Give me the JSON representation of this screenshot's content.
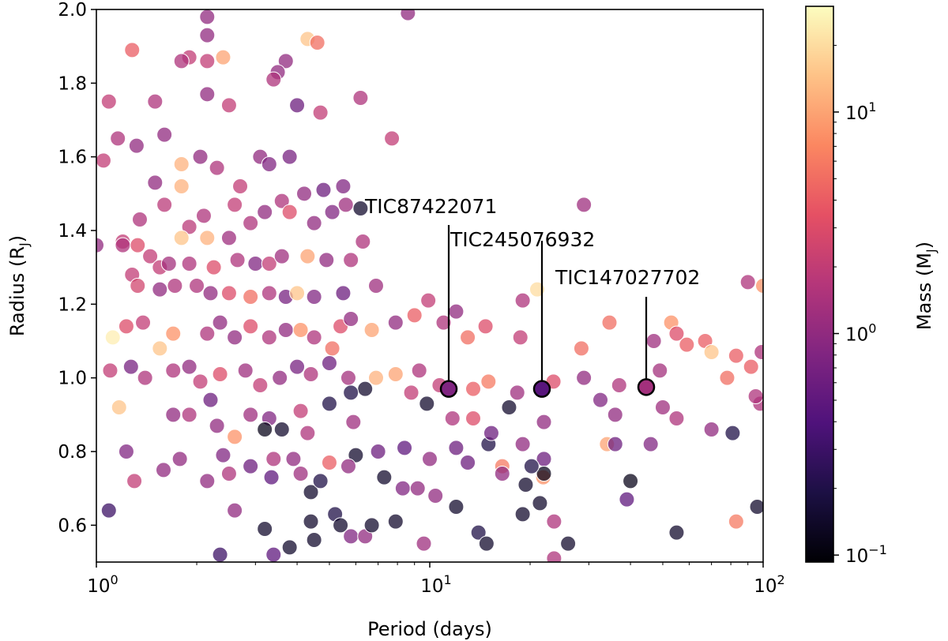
{
  "chart_data": {
    "type": "scatter",
    "xlabel": "Period (days)",
    "ylabel": "Radius (R",
    "ylabel_sub": "J",
    "ylabel_end": ")",
    "xscale": "log",
    "xlim": [
      1,
      100
    ],
    "ylim": [
      0.5,
      2.0
    ],
    "x_ticks": [
      {
        "value": 1,
        "base": "10",
        "exp": "0"
      },
      {
        "value": 10,
        "base": "10",
        "exp": "1"
      },
      {
        "value": 100,
        "base": "10",
        "exp": "2"
      }
    ],
    "y_ticks": [
      "0.6",
      "0.8",
      "1.0",
      "1.2",
      "1.4",
      "1.6",
      "1.8",
      "2.0"
    ],
    "grid": false,
    "colorbar": {
      "label": "Mass (M",
      "label_sub": "J",
      "label_end": ")",
      "scale": "log",
      "range": [
        0.093,
        30
      ],
      "colormap": "magma",
      "ticks": [
        {
          "value": 0.1,
          "base": "10",
          "exp": "−1"
        },
        {
          "value": 1,
          "base": "10",
          "exp": "0"
        },
        {
          "value": 10,
          "base": "10",
          "exp": "1"
        }
      ]
    },
    "point_columns": [
      "period_days",
      "radius_RJ",
      "mass_MJ"
    ],
    "points": [
      [
        1.0,
        1.36,
        1.0
      ],
      [
        2.15,
        1.98,
        1
      ],
      [
        2.15,
        1.93,
        1
      ],
      [
        8.6,
        1.99,
        1
      ],
      [
        4.3,
        1.92,
        15
      ],
      [
        4.6,
        1.91,
        5
      ],
      [
        1.28,
        1.89,
        4
      ],
      [
        1.9,
        1.87,
        2
      ],
      [
        1.8,
        1.86,
        1.5
      ],
      [
        2.15,
        1.86,
        2
      ],
      [
        2.4,
        1.87,
        10
      ],
      [
        3.7,
        1.86,
        1
      ],
      [
        3.5,
        1.83,
        1
      ],
      [
        3.4,
        1.81,
        1.5
      ],
      [
        1.09,
        1.75,
        2
      ],
      [
        1.5,
        1.75,
        1.5
      ],
      [
        2.15,
        1.77,
        1
      ],
      [
        2.5,
        1.74,
        2
      ],
      [
        4.0,
        1.74,
        0.6
      ],
      [
        4.7,
        1.72,
        2
      ],
      [
        6.2,
        1.76,
        1.5
      ],
      [
        1.16,
        1.65,
        1.5
      ],
      [
        1.32,
        1.63,
        1
      ],
      [
        1.6,
        1.66,
        1
      ],
      [
        2.05,
        1.6,
        1
      ],
      [
        1.05,
        1.59,
        2
      ],
      [
        1.8,
        1.58,
        12
      ],
      [
        1.5,
        1.53,
        1
      ],
      [
        2.3,
        1.57,
        1.5
      ],
      [
        7.7,
        1.65,
        2
      ],
      [
        4.8,
        1.51,
        0.6
      ],
      [
        5.5,
        1.52,
        0.8
      ],
      [
        4.2,
        1.5,
        1
      ],
      [
        2.7,
        1.52,
        2
      ],
      [
        3.1,
        1.6,
        1
      ],
      [
        3.3,
        1.58,
        0.8
      ],
      [
        3.6,
        1.48,
        1.5
      ],
      [
        3.8,
        1.6,
        0.7
      ],
      [
        2.6,
        1.47,
        2
      ],
      [
        1.8,
        1.52,
        12
      ],
      [
        1.6,
        1.47,
        1.8
      ],
      [
        1.35,
        1.43,
        1.5
      ],
      [
        1.9,
        1.41,
        1.8
      ],
      [
        2.1,
        1.44,
        1.5
      ],
      [
        1.8,
        1.38,
        15
      ],
      [
        2.15,
        1.38,
        12
      ],
      [
        2.5,
        1.38,
        1.2
      ],
      [
        2.9,
        1.42,
        1.5
      ],
      [
        3.2,
        1.45,
        1.0
      ],
      [
        3.8,
        1.45,
        3
      ],
      [
        4.5,
        1.42,
        1.0
      ],
      [
        5.1,
        1.45,
        0.8
      ],
      [
        5.6,
        1.47,
        1.2
      ],
      [
        6.3,
        1.37,
        1.5
      ],
      [
        6.2,
        1.46,
        0.15
      ],
      [
        29,
        1.47,
        1.2
      ],
      [
        1.2,
        1.37,
        2
      ],
      [
        1.33,
        1.36,
        3
      ],
      [
        1.2,
        1.36,
        1.5
      ],
      [
        1.45,
        1.33,
        2
      ],
      [
        1.55,
        1.3,
        2
      ],
      [
        1.65,
        1.31,
        1.3
      ],
      [
        1.9,
        1.31,
        1.5
      ],
      [
        2.25,
        1.3,
        3
      ],
      [
        2.65,
        1.32,
        1.5
      ],
      [
        3.0,
        1.31,
        0.8
      ],
      [
        3.3,
        1.31,
        2
      ],
      [
        3.6,
        1.33,
        1.2
      ],
      [
        4.3,
        1.33,
        10
      ],
      [
        4.9,
        1.32,
        1.0
      ],
      [
        5.8,
        1.32,
        1.5
      ],
      [
        1.28,
        1.28,
        2
      ],
      [
        1.33,
        1.25,
        2.5
      ],
      [
        1.55,
        1.24,
        1
      ],
      [
        1.72,
        1.25,
        1.5
      ],
      [
        2.0,
        1.25,
        1.5
      ],
      [
        2.2,
        1.23,
        1
      ],
      [
        2.5,
        1.23,
        3
      ],
      [
        2.9,
        1.22,
        5
      ],
      [
        3.3,
        1.23,
        1.5
      ],
      [
        3.7,
        1.22,
        0.7
      ],
      [
        4.0,
        1.23,
        15
      ],
      [
        4.5,
        1.22,
        0.8
      ],
      [
        5.5,
        1.23,
        0.6
      ],
      [
        6.9,
        1.25,
        1.2
      ],
      [
        5.4,
        1.14,
        3
      ],
      [
        1.23,
        1.14,
        3
      ],
      [
        1.12,
        1.11,
        25
      ],
      [
        1.38,
        1.15,
        2
      ],
      [
        1.7,
        1.12,
        8
      ],
      [
        2.15,
        1.12,
        1.5
      ],
      [
        2.35,
        1.15,
        1
      ],
      [
        2.6,
        1.11,
        1
      ],
      [
        2.9,
        1.14,
        3
      ],
      [
        3.3,
        1.11,
        1.5
      ],
      [
        3.7,
        1.13,
        1
      ],
      [
        4.1,
        1.13,
        8
      ],
      [
        4.5,
        1.11,
        1.5
      ],
      [
        5.1,
        1.08,
        5
      ],
      [
        5.8,
        1.16,
        1.0
      ],
      [
        6.7,
        1.13,
        10
      ],
      [
        7.9,
        1.15,
        1.0
      ],
      [
        9.0,
        1.17,
        4
      ],
      [
        9.9,
        1.21,
        2
      ],
      [
        11,
        1.15,
        1.5
      ],
      [
        12,
        1.18,
        1.0
      ],
      [
        13,
        1.11,
        5
      ],
      [
        14.7,
        1.14,
        3
      ],
      [
        18.7,
        1.11,
        2
      ],
      [
        19,
        1.21,
        1.5
      ],
      [
        21,
        1.24,
        20
      ],
      [
        28.5,
        1.08,
        5
      ],
      [
        34.6,
        1.15,
        5
      ],
      [
        47,
        1.1,
        1.2
      ],
      [
        53,
        1.15,
        8
      ],
      [
        55,
        1.12,
        3
      ],
      [
        59,
        1.09,
        4
      ],
      [
        67,
        1.1,
        4
      ],
      [
        70,
        1.07,
        15
      ],
      [
        83,
        1.06,
        4
      ],
      [
        90,
        1.26,
        1.5
      ],
      [
        100,
        1.25,
        8
      ],
      [
        99,
        1.07,
        1.5
      ],
      [
        98,
        0.93,
        1.5
      ],
      [
        1.1,
        1.02,
        2
      ],
      [
        1.27,
        1.03,
        0.7
      ],
      [
        1.4,
        1.0,
        1.5
      ],
      [
        1.55,
        1.08,
        15
      ],
      [
        1.7,
        1.02,
        1.5
      ],
      [
        1.9,
        1.03,
        1
      ],
      [
        2.05,
        0.99,
        2
      ],
      [
        2.35,
        1.01,
        3
      ],
      [
        2.8,
        1.02,
        1.2
      ],
      [
        3.1,
        0.98,
        2
      ],
      [
        3.55,
        1.0,
        1
      ],
      [
        4.0,
        1.03,
        0.7
      ],
      [
        4.4,
        1.01,
        1.5
      ],
      [
        5.0,
        1.04,
        0.6
      ],
      [
        5.7,
        1.0,
        1.3
      ],
      [
        6.4,
        0.97,
        0.15
      ],
      [
        6.9,
        1.0,
        12
      ],
      [
        7.9,
        1.01,
        10
      ],
      [
        8.8,
        0.96,
        2
      ],
      [
        9.3,
        1.02,
        1.5
      ],
      [
        10.7,
        0.98,
        2
      ],
      [
        13.5,
        0.97,
        4
      ],
      [
        15,
        0.99,
        6
      ],
      [
        18.3,
        0.96,
        1.2
      ],
      [
        23.5,
        0.99,
        3
      ],
      [
        29,
        1.0,
        1
      ],
      [
        32.5,
        0.94,
        0.8
      ],
      [
        37,
        0.98,
        1.5
      ],
      [
        49,
        1.02,
        1.3
      ],
      [
        92,
        1.03,
        4
      ],
      [
        95,
        0.95,
        1.5
      ],
      [
        78,
        1.0,
        5
      ],
      [
        1.17,
        0.92,
        15
      ],
      [
        1.7,
        0.9,
        1
      ],
      [
        1.9,
        0.9,
        1.5
      ],
      [
        2.2,
        0.94,
        0.6
      ],
      [
        2.3,
        0.87,
        1
      ],
      [
        2.6,
        0.84,
        8
      ],
      [
        2.9,
        0.9,
        1.2
      ],
      [
        3.3,
        0.89,
        0.8
      ],
      [
        3.2,
        0.86,
        0.12
      ],
      [
        3.6,
        0.86,
        0.15
      ],
      [
        4.1,
        0.91,
        2
      ],
      [
        4.3,
        0.85,
        1.5
      ],
      [
        5.0,
        0.93,
        0.2
      ],
      [
        5.8,
        0.96,
        0.2
      ],
      [
        5.9,
        0.88,
        1.2
      ],
      [
        9.8,
        0.93,
        0.15
      ],
      [
        11.7,
        0.89,
        1.5
      ],
      [
        13.5,
        0.89,
        3
      ],
      [
        17.3,
        0.92,
        0.15
      ],
      [
        22,
        0.88,
        1.0
      ],
      [
        36,
        0.9,
        1.0
      ],
      [
        50,
        0.92,
        1.2
      ],
      [
        55,
        0.89,
        1.5
      ],
      [
        70,
        0.86,
        1.0
      ],
      [
        81,
        0.85,
        0.2
      ],
      [
        1.23,
        0.8,
        0.8
      ],
      [
        1.59,
        0.75,
        1
      ],
      [
        1.78,
        0.78,
        1
      ],
      [
        2.15,
        0.72,
        1
      ],
      [
        2.4,
        0.79,
        0.8
      ],
      [
        2.9,
        0.76,
        0.6
      ],
      [
        3.35,
        0.73,
        0.5
      ],
      [
        4.1,
        0.74,
        1.2
      ],
      [
        4.4,
        0.69,
        0.15
      ],
      [
        5.0,
        0.77,
        4
      ],
      [
        6.0,
        0.79,
        0.15
      ],
      [
        7.0,
        0.8,
        0.6
      ],
      [
        8.4,
        0.81,
        0.5
      ],
      [
        10,
        0.78,
        1.0
      ],
      [
        12,
        0.81,
        0.6
      ],
      [
        13,
        0.77,
        0.6
      ],
      [
        15,
        0.82,
        0.2
      ],
      [
        15.3,
        0.85,
        0.6
      ],
      [
        16.5,
        0.76,
        6
      ],
      [
        19,
        0.82,
        1.0
      ],
      [
        22,
        0.78,
        0.6
      ],
      [
        21.9,
        0.73,
        8
      ],
      [
        34,
        0.82,
        10
      ],
      [
        36,
        0.82,
        0.6
      ],
      [
        46,
        0.82,
        0.8
      ],
      [
        1.3,
        0.72,
        2
      ],
      [
        2.5,
        0.74,
        1.5
      ],
      [
        2.6,
        0.64,
        1.0
      ],
      [
        3.4,
        0.78,
        1.5
      ],
      [
        3.9,
        0.78,
        1.0
      ],
      [
        4.7,
        0.72,
        0.2
      ],
      [
        5.7,
        0.76,
        1.0
      ],
      [
        7.3,
        0.73,
        0.15
      ],
      [
        8.3,
        0.7,
        0.8
      ],
      [
        9.2,
        0.7,
        1.0
      ],
      [
        10.4,
        0.68,
        1.0
      ],
      [
        16.5,
        0.74,
        1.0
      ],
      [
        22,
        0.74,
        0.12
      ],
      [
        19.4,
        0.71,
        0.15
      ],
      [
        20.2,
        0.76,
        0.2
      ],
      [
        40,
        0.72,
        0.12
      ],
      [
        39,
        0.67,
        0.5
      ],
      [
        21.4,
        0.66,
        0.15
      ],
      [
        12,
        0.65,
        0.15
      ],
      [
        19,
        0.63,
        0.15
      ],
      [
        23.6,
        0.61,
        1.5
      ],
      [
        26,
        0.55,
        0.15
      ],
      [
        14,
        0.58,
        0.2
      ],
      [
        55,
        0.58,
        0.15
      ],
      [
        83,
        0.61,
        6
      ],
      [
        96,
        0.65,
        0.15
      ],
      [
        1.09,
        0.64,
        0.3
      ],
      [
        2.35,
        0.52,
        0.3
      ],
      [
        3.2,
        0.59,
        0.15
      ],
      [
        3.4,
        0.52,
        0.5
      ],
      [
        3.8,
        0.54,
        0.15
      ],
      [
        4.4,
        0.61,
        0.15
      ],
      [
        4.5,
        0.56,
        0.15
      ],
      [
        5.2,
        0.63,
        0.2
      ],
      [
        5.4,
        0.6,
        0.15
      ],
      [
        5.8,
        0.57,
        0.8
      ],
      [
        6.4,
        0.57,
        1.0
      ],
      [
        6.7,
        0.6,
        0.15
      ],
      [
        7.9,
        0.61,
        0.15
      ],
      [
        9.6,
        0.55,
        1.2
      ],
      [
        14.8,
        0.55,
        0.15
      ],
      [
        23.6,
        0.51,
        1.5
      ]
    ],
    "highlighted": [
      {
        "label": "TIC87422071",
        "period": 11.4,
        "radius": 0.97,
        "mass": 0.8
      },
      {
        "label": "TIC245076932",
        "period": 21.7,
        "radius": 0.97,
        "mass": 0.45
      },
      {
        "label": "TIC147027702",
        "period": 44.6,
        "radius": 0.975,
        "mass": 1.3
      }
    ]
  }
}
